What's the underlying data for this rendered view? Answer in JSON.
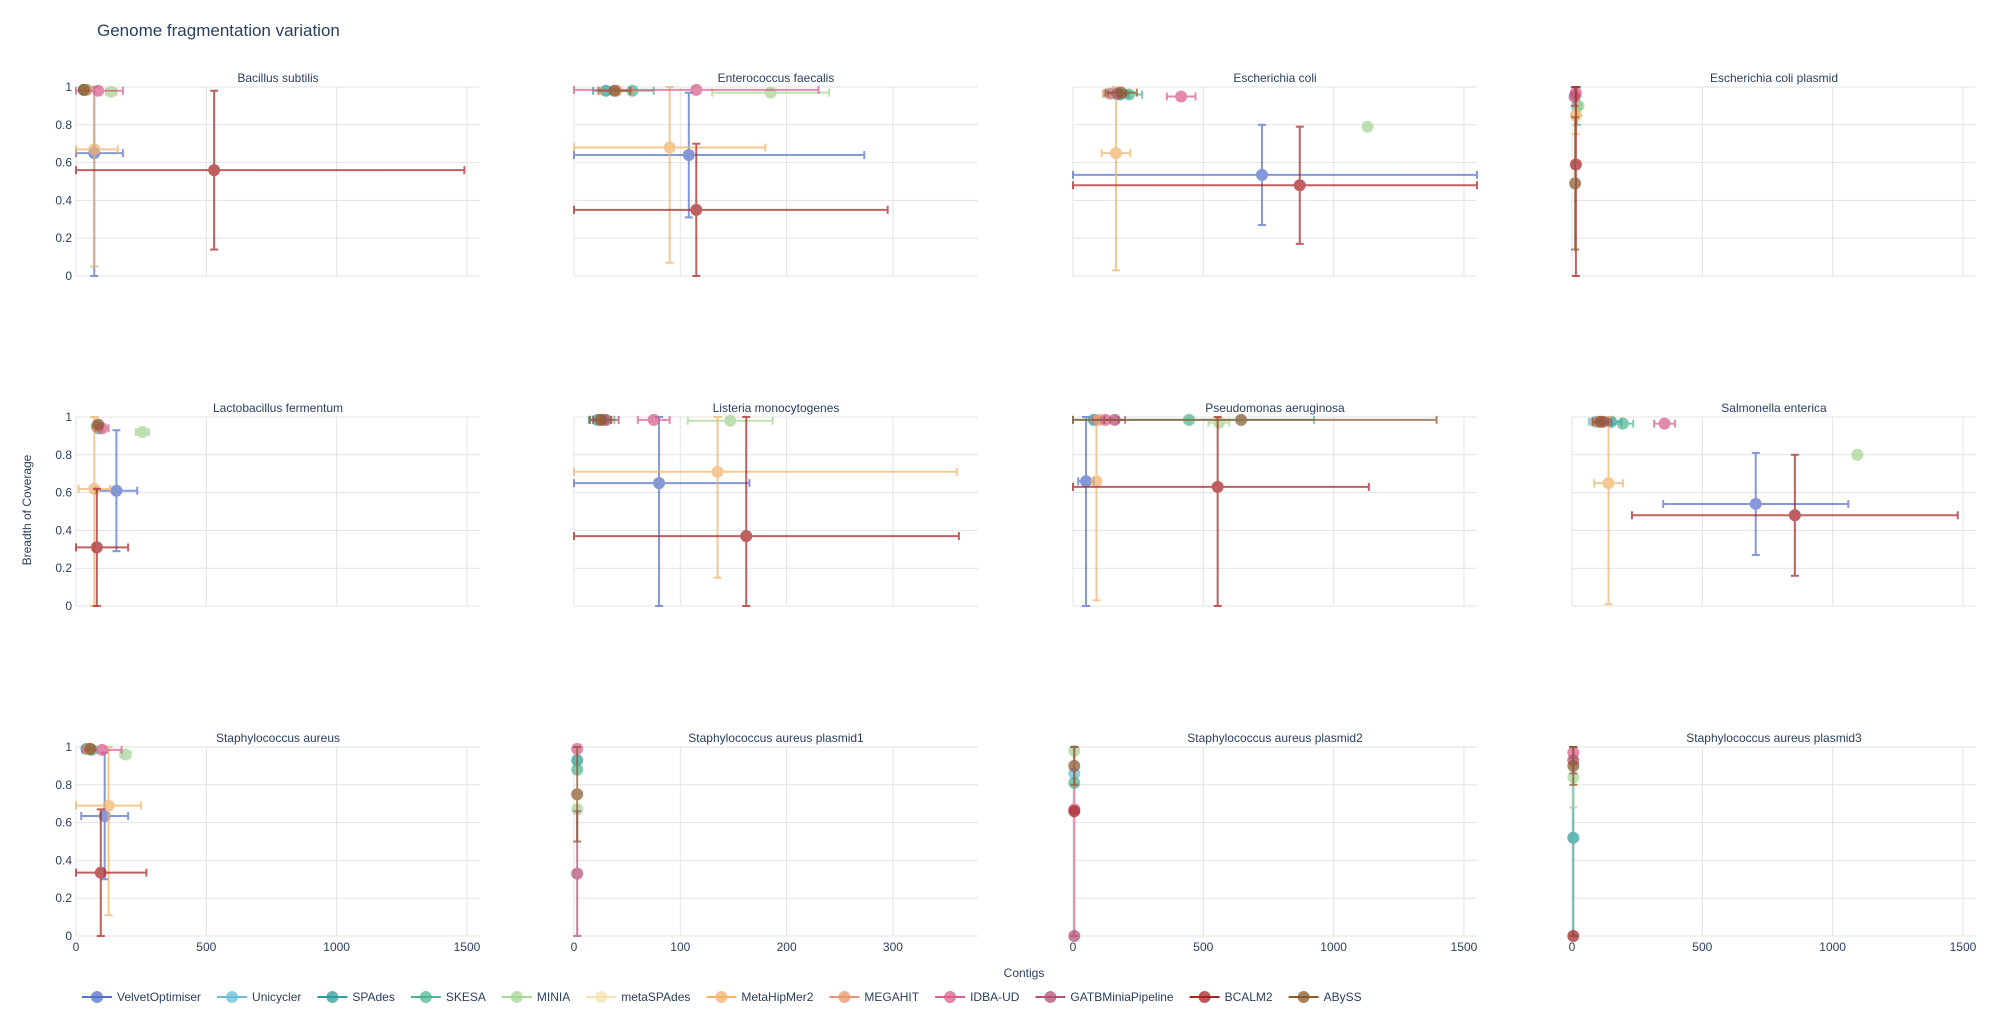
{
  "chart_data": {
    "type": "scatter",
    "title": "Genome fragmentation variation",
    "xlabel": "Contigs",
    "ylabel": "Breadth of Coverage",
    "grid": true,
    "legend_position": "bottom",
    "yticks": [
      "0",
      "0.2",
      "0.4",
      "0.6",
      "0.8",
      "1"
    ],
    "assemblers": [
      {
        "name": "VelvetOptimiser",
        "color": "#5571c8"
      },
      {
        "name": "Unicycler",
        "color": "#6bbbd6"
      },
      {
        "name": "SPAdes",
        "color": "#2f9e9a"
      },
      {
        "name": "SKESA",
        "color": "#4db691"
      },
      {
        "name": "MINIA",
        "color": "#a6d594"
      },
      {
        "name": "metaSPAdes",
        "color": "#f2e3b0"
      },
      {
        "name": "MetaHipMer2",
        "color": "#f2b36a"
      },
      {
        "name": "MEGAHIT",
        "color": "#e7976d"
      },
      {
        "name": "IDBA-UD",
        "color": "#d95d8c"
      },
      {
        "name": "GATBMiniaPipeline",
        "color": "#b24f77"
      },
      {
        "name": "BCALM2",
        "color": "#a72424"
      },
      {
        "name": "ABySS",
        "color": "#8a5a2e"
      }
    ],
    "panels": [
      {
        "title": "Bacillus subtilis",
        "xlim": [
          0,
          1550
        ],
        "xticks": [
          "0",
          "500",
          "1000",
          "1500"
        ],
        "show_xticks": false,
        "points": [
          {
            "a": "VelvetOptimiser",
            "x": 70,
            "xe": 110,
            "y": 0.65,
            "ye": 0.65
          },
          {
            "a": "SPAdes",
            "x": 30,
            "xe": 10,
            "y": 0.985,
            "ye": 0.01
          },
          {
            "a": "SKESA",
            "x": 40,
            "xe": 12,
            "y": 0.985,
            "ye": 0.01
          },
          {
            "a": "MINIA",
            "x": 135,
            "xe": 20,
            "y": 0.975,
            "ye": 0.01
          },
          {
            "a": "MetaHipMer2",
            "x": 70,
            "xe": 90,
            "y": 0.67,
            "ye": 0.62
          },
          {
            "a": "MEGAHIT",
            "x": 40,
            "xe": 15,
            "y": 0.985,
            "ye": 0.01
          },
          {
            "a": "IDBA-UD",
            "x": 85,
            "xe": 95,
            "y": 0.98,
            "ye": 0.01
          },
          {
            "a": "BCALM2",
            "x": 530,
            "xe": 960,
            "y": 0.56,
            "ye": 0.42
          },
          {
            "a": "ABySS",
            "x": 30,
            "xe": 12,
            "y": 0.985,
            "ye": 0.01
          }
        ]
      },
      {
        "title": "Enterococcus faecalis",
        "xlim": [
          0,
          380
        ],
        "xticks": [
          "0",
          "100",
          "200",
          "300"
        ],
        "show_xticks": false,
        "points": [
          {
            "a": "VelvetOptimiser",
            "x": 108,
            "xe": 165,
            "y": 0.64,
            "ye": 0.33
          },
          {
            "a": "SPAdes",
            "x": 30,
            "xe": 12,
            "y": 0.98,
            "ye": 0.01
          },
          {
            "a": "SKESA",
            "x": 55,
            "xe": 20,
            "y": 0.98,
            "ye": 0.01
          },
          {
            "a": "MINIA",
            "x": 185,
            "xe": 55,
            "y": 0.97,
            "ye": 0.01
          },
          {
            "a": "MetaHipMer2",
            "x": 90,
            "xe": 90,
            "y": 0.68,
            "ye": 0.61
          },
          {
            "a": "MEGAHIT",
            "x": 40,
            "xe": 15,
            "y": 0.98,
            "ye": 0.01
          },
          {
            "a": "IDBA-UD",
            "x": 115,
            "xe": 115,
            "y": 0.985,
            "ye": 0.01
          },
          {
            "a": "BCALM2",
            "x": 115,
            "xe": 180,
            "y": 0.35,
            "ye": 0.35
          },
          {
            "a": "ABySS",
            "x": 38,
            "xe": 15,
            "y": 0.98,
            "ye": 0.01
          }
        ]
      },
      {
        "title": "Escherichia coli",
        "xlim": [
          0,
          1550
        ],
        "xticks": [
          "0",
          "500",
          "1000",
          "1500"
        ],
        "show_xticks": false,
        "points": [
          {
            "a": "VelvetOptimiser",
            "x": 725,
            "xe": 1080,
            "y": 0.535,
            "ye": 0.265
          },
          {
            "a": "Unicycler",
            "x": 150,
            "xe": 30,
            "y": 0.965,
            "ye": 0.01
          },
          {
            "a": "SPAdes",
            "x": 180,
            "xe": 35,
            "y": 0.96,
            "ye": 0.01
          },
          {
            "a": "SKESA",
            "x": 215,
            "xe": 50,
            "y": 0.96,
            "ye": 0.01
          },
          {
            "a": "MINIA",
            "x": 1130,
            "xe": 15,
            "y": 0.79,
            "ye": 0.01
          },
          {
            "a": "MetaHipMer2",
            "x": 165,
            "xe": 55,
            "y": 0.65,
            "ye": 0.62
          },
          {
            "a": "MEGAHIT",
            "x": 140,
            "xe": 25,
            "y": 0.965,
            "ye": 0.01
          },
          {
            "a": "IDBA-UD",
            "x": 415,
            "xe": 55,
            "y": 0.95,
            "ye": 0.01
          },
          {
            "a": "GATBMiniaPipeline",
            "x": 170,
            "xe": 35,
            "y": 0.965,
            "ye": 0.01
          },
          {
            "a": "BCALM2",
            "x": 870,
            "xe": 1270,
            "y": 0.48,
            "ye": 0.31
          },
          {
            "a": "ABySS",
            "x": 185,
            "xe": 60,
            "y": 0.97,
            "ye": 0.01
          }
        ]
      },
      {
        "title": "Escherichia coli plasmid",
        "xlim": [
          0,
          1550
        ],
        "xticks": [
          "0",
          "500",
          "1000",
          "1500"
        ],
        "show_xticks": false,
        "points": [
          {
            "a": "SKESA",
            "x": 20,
            "xe": 5,
            "y": 0.9,
            "ye": 0.1
          },
          {
            "a": "MINIA",
            "x": 25,
            "xe": 5,
            "y": 0.9,
            "ye": 0.05
          },
          {
            "a": "MetaHipMer2",
            "x": 15,
            "xe": 5,
            "y": 0.85,
            "ye": 0.1
          },
          {
            "a": "IDBA-UD",
            "x": 15,
            "xe": 5,
            "y": 0.97,
            "ye": 0.03
          },
          {
            "a": "GATBMiniaPipeline",
            "x": 10,
            "xe": 5,
            "y": 0.95,
            "ye": 0.05
          },
          {
            "a": "BCALM2",
            "x": 15,
            "xe": 5,
            "y": 0.59,
            "ye": 0.59
          },
          {
            "a": "ABySS",
            "x": 12,
            "xe": 5,
            "y": 0.49,
            "ye": 0.35
          }
        ]
      },
      {
        "title": "Lactobacillus fermentum",
        "xlim": [
          0,
          1550
        ],
        "xticks": [
          "0",
          "500",
          "1000",
          "1500"
        ],
        "show_xticks": false,
        "points": [
          {
            "a": "VelvetOptimiser",
            "x": 155,
            "xe": 80,
            "y": 0.61,
            "ye": 0.32
          },
          {
            "a": "SPAdes",
            "x": 80,
            "xe": 10,
            "y": 0.95,
            "ye": 0.01
          },
          {
            "a": "SKESA",
            "x": 85,
            "xe": 12,
            "y": 0.94,
            "ye": 0.01
          },
          {
            "a": "MINIA",
            "x": 255,
            "xe": 25,
            "y": 0.92,
            "ye": 0.01
          },
          {
            "a": "MetaHipMer2",
            "x": 70,
            "xe": 60,
            "y": 0.62,
            "ye": 0.62
          },
          {
            "a": "MEGAHIT",
            "x": 80,
            "xe": 12,
            "y": 0.95,
            "ye": 0.01
          },
          {
            "a": "IDBA-UD",
            "x": 100,
            "xe": 25,
            "y": 0.94,
            "ye": 0.01
          },
          {
            "a": "BCALM2",
            "x": 80,
            "xe": 120,
            "y": 0.31,
            "ye": 0.31
          },
          {
            "a": "ABySS",
            "x": 85,
            "xe": 15,
            "y": 0.96,
            "ye": 0.01
          }
        ]
      },
      {
        "title": "Listeria monocytogenes",
        "xlim": [
          0,
          380
        ],
        "xticks": [
          "0",
          "100",
          "200",
          "300"
        ],
        "show_xticks": false,
        "points": [
          {
            "a": "VelvetOptimiser",
            "x": 80,
            "xe": 85,
            "y": 0.65,
            "ye": 0.65
          },
          {
            "a": "SPAdes",
            "x": 22,
            "xe": 8,
            "y": 0.985,
            "ye": 0.01
          },
          {
            "a": "SKESA",
            "x": 28,
            "xe": 10,
            "y": 0.985,
            "ye": 0.01
          },
          {
            "a": "MINIA",
            "x": 147,
            "xe": 40,
            "y": 0.98,
            "ye": 0.01
          },
          {
            "a": "MetaHipMer2",
            "x": 135,
            "xe": 225,
            "y": 0.71,
            "ye": 0.56
          },
          {
            "a": "MEGAHIT",
            "x": 25,
            "xe": 10,
            "y": 0.985,
            "ye": 0.01
          },
          {
            "a": "IDBA-UD",
            "x": 75,
            "xe": 15,
            "y": 0.985,
            "ye": 0.01
          },
          {
            "a": "GATBMiniaPipeline",
            "x": 30,
            "xe": 12,
            "y": 0.985,
            "ye": 0.01
          },
          {
            "a": "BCALM2",
            "x": 162,
            "xe": 200,
            "y": 0.37,
            "ye": 0.63
          },
          {
            "a": "ABySS",
            "x": 25,
            "xe": 10,
            "y": 0.985,
            "ye": 0.01
          }
        ]
      },
      {
        "title": "Pseudomonas aeruginosa",
        "xlim": [
          0,
          1550
        ],
        "xticks": [
          "0",
          "500",
          "1000",
          "1500"
        ],
        "show_xticks": false,
        "points": [
          {
            "a": "VelvetOptimiser",
            "x": 50,
            "xe": 30,
            "y": 0.66,
            "ye": 0.66
          },
          {
            "a": "SPAdes",
            "x": 80,
            "xe": 15,
            "y": 0.985,
            "ye": 0.01
          },
          {
            "a": "SKESA",
            "x": 445,
            "xe": 480,
            "y": 0.985,
            "ye": 0.01
          },
          {
            "a": "MINIA",
            "x": 560,
            "xe": 40,
            "y": 0.97,
            "ye": 0.01
          },
          {
            "a": "MetaHipMer2",
            "x": 90,
            "xe": 15,
            "y": 0.66,
            "ye": 0.63
          },
          {
            "a": "MEGAHIT",
            "x": 100,
            "xe": 20,
            "y": 0.985,
            "ye": 0.01
          },
          {
            "a": "IDBA-UD",
            "x": 125,
            "xe": 50,
            "y": 0.985,
            "ye": 0.01
          },
          {
            "a": "GATBMiniaPipeline",
            "x": 160,
            "xe": 40,
            "y": 0.985,
            "ye": 0.01
          },
          {
            "a": "BCALM2",
            "x": 555,
            "xe": 580,
            "y": 0.63,
            "ye": 0.63
          },
          {
            "a": "ABySS",
            "x": 645,
            "xe": 750,
            "y": 0.985,
            "ye": 0.01
          }
        ]
      },
      {
        "title": "Salmonella enterica",
        "xlim": [
          0,
          1550
        ],
        "xticks": [
          "0",
          "500",
          "1000",
          "1500"
        ],
        "show_xticks": false,
        "points": [
          {
            "a": "VelvetOptimiser",
            "x": 705,
            "xe": 355,
            "y": 0.54,
            "ye": 0.27
          },
          {
            "a": "Unicycler",
            "x": 90,
            "xe": 25,
            "y": 0.975,
            "ye": 0.01
          },
          {
            "a": "SPAdes",
            "x": 150,
            "xe": 40,
            "y": 0.975,
            "ye": 0.01
          },
          {
            "a": "SKESA",
            "x": 195,
            "xe": 40,
            "y": 0.965,
            "ye": 0.01
          },
          {
            "a": "MINIA",
            "x": 1095,
            "xe": 15,
            "y": 0.8,
            "ye": 0.01
          },
          {
            "a": "MetaHipMer2",
            "x": 140,
            "xe": 55,
            "y": 0.65,
            "ye": 0.64
          },
          {
            "a": "MEGAHIT",
            "x": 100,
            "xe": 25,
            "y": 0.975,
            "ye": 0.01
          },
          {
            "a": "IDBA-UD",
            "x": 355,
            "xe": 40,
            "y": 0.965,
            "ye": 0.01
          },
          {
            "a": "GATBMiniaPipeline",
            "x": 120,
            "xe": 30,
            "y": 0.975,
            "ye": 0.01
          },
          {
            "a": "BCALM2",
            "x": 855,
            "xe": 625,
            "y": 0.48,
            "ye": 0.32
          },
          {
            "a": "ABySS",
            "x": 110,
            "xe": 30,
            "y": 0.975,
            "ye": 0.01
          }
        ]
      },
      {
        "title": "Staphylococcus aureus",
        "xlim": [
          0,
          1550
        ],
        "xticks": [
          "0",
          "500",
          "1000",
          "1500"
        ],
        "show_xticks": true,
        "points": [
          {
            "a": "VelvetOptimiser",
            "x": 110,
            "xe": 90,
            "y": 0.635,
            "ye": 0.335
          },
          {
            "a": "SPAdes",
            "x": 40,
            "xe": 12,
            "y": 0.99,
            "ye": 0.01
          },
          {
            "a": "SKESA",
            "x": 60,
            "xe": 20,
            "y": 0.985,
            "ye": 0.01
          },
          {
            "a": "MINIA",
            "x": 190,
            "xe": 20,
            "y": 0.96,
            "ye": 0.01
          },
          {
            "a": "MetaHipMer2",
            "x": 125,
            "xe": 125,
            "y": 0.69,
            "ye": 0.58
          },
          {
            "a": "MEGAHIT",
            "x": 50,
            "xe": 15,
            "y": 0.99,
            "ye": 0.01
          },
          {
            "a": "IDBA-UD",
            "x": 100,
            "xe": 75,
            "y": 0.985,
            "ye": 0.01
          },
          {
            "a": "BCALM2",
            "x": 95,
            "xe": 175,
            "y": 0.335,
            "ye": 0.335
          },
          {
            "a": "ABySS",
            "x": 55,
            "xe": 15,
            "y": 0.99,
            "ye": 0.01
          }
        ]
      },
      {
        "title": "Staphylococcus aureus plasmid1",
        "xlim": [
          0,
          380
        ],
        "xticks": [
          "0",
          "100",
          "200",
          "300"
        ],
        "show_xticks": true,
        "points": [
          {
            "a": "SPAdes",
            "x": 3,
            "xe": 1,
            "y": 0.93,
            "ye": 0.02
          },
          {
            "a": "SKESA",
            "x": 3,
            "xe": 1,
            "y": 0.88,
            "ye": 0.02
          },
          {
            "a": "MINIA",
            "x": 3,
            "xe": 1,
            "y": 0.67,
            "ye": 0.02
          },
          {
            "a": "IDBA-UD",
            "x": 3,
            "xe": 1,
            "y": 0.99,
            "ye": 0.01
          },
          {
            "a": "GATBMiniaPipeline",
            "x": 3,
            "xe": 1,
            "y": 0.33,
            "ye": 0.33
          },
          {
            "a": "ABySS",
            "x": 3,
            "xe": 1,
            "y": 0.75,
            "ye": 0.25
          }
        ]
      },
      {
        "title": "Staphylococcus aureus plasmid2",
        "xlim": [
          0,
          1550
        ],
        "xticks": [
          "0",
          "500",
          "1000",
          "1500"
        ],
        "show_xticks": true,
        "points": [
          {
            "a": "Unicycler",
            "x": 5,
            "xe": 1,
            "y": 0.86,
            "ye": 0.02
          },
          {
            "a": "SKESA",
            "x": 5,
            "xe": 1,
            "y": 0.81,
            "ye": 0.02
          },
          {
            "a": "MINIA",
            "x": 5,
            "xe": 1,
            "y": 0.98,
            "ye": 0.01
          },
          {
            "a": "IDBA-UD",
            "x": 5,
            "xe": 1,
            "y": 0.67,
            "ye": 0.67
          },
          {
            "a": "BCALM2",
            "x": 5,
            "xe": 1,
            "y": 0.66,
            "ye": 0.02
          },
          {
            "a": "GATBMiniaPipeline",
            "x": 5,
            "xe": 1,
            "y": 0.0,
            "ye": 0.0
          },
          {
            "a": "ABySS",
            "x": 5,
            "xe": 1,
            "y": 0.9,
            "ye": 0.1
          }
        ]
      },
      {
        "title": "Staphylococcus aureus plasmid3",
        "xlim": [
          0,
          1550
        ],
        "xticks": [
          "0",
          "500",
          "1000",
          "1500"
        ],
        "show_xticks": true,
        "points": [
          {
            "a": "SPAdes",
            "x": 5,
            "xe": 1,
            "y": 0.52,
            "ye": 0.52
          },
          {
            "a": "MINIA",
            "x": 5,
            "xe": 1,
            "y": 0.84,
            "ye": 0.16
          },
          {
            "a": "IDBA-UD",
            "x": 5,
            "xe": 1,
            "y": 0.97,
            "ye": 0.03
          },
          {
            "a": "GATBMiniaPipeline",
            "x": 5,
            "xe": 1,
            "y": 0.93,
            "ye": 0.07
          },
          {
            "a": "BCALM2",
            "x": 5,
            "xe": 1,
            "y": 0.0,
            "ye": 0.0
          },
          {
            "a": "ABySS",
            "x": 5,
            "xe": 1,
            "y": 0.9,
            "ye": 0.1
          }
        ]
      }
    ]
  }
}
